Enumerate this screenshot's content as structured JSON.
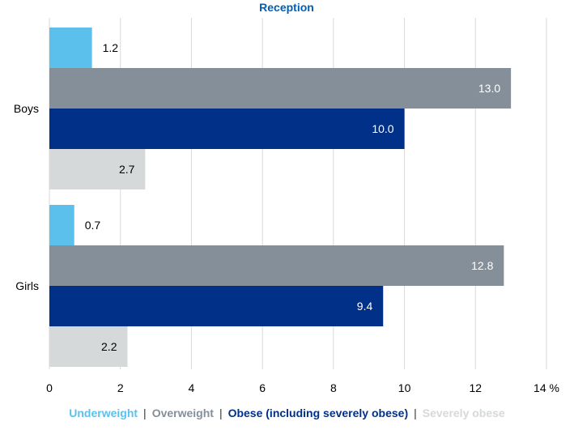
{
  "chart_data": {
    "type": "bar",
    "orientation": "horizontal",
    "title": "Reception",
    "categories": [
      "Boys",
      "Girls"
    ],
    "series": [
      {
        "name": "Underweight",
        "color": "#5bc0eb",
        "values": [
          1.2,
          0.7
        ]
      },
      {
        "name": "Overweight",
        "color": "#848f99",
        "values": [
          13.0,
          12.8
        ]
      },
      {
        "name": "Obese (including severely obese)",
        "color": "#003087",
        "values": [
          10.0,
          9.4
        ]
      },
      {
        "name": "Severely obese",
        "color": "#d5d9d9",
        "values": [
          2.7,
          2.2
        ]
      }
    ],
    "value_labels": [
      [
        "1.2",
        "0.7"
      ],
      [
        "13.0",
        "12.8"
      ],
      [
        "10.0",
        "9.4"
      ],
      [
        "2.7",
        "2.2"
      ]
    ],
    "xlim": [
      0,
      14
    ],
    "xticks": [
      "0",
      "2",
      "4",
      "6",
      "8",
      "10",
      "12",
      "14 %"
    ],
    "grid": true,
    "legend_position": "bottom",
    "legend_separator": "|",
    "colors": {
      "title": "#005eb8",
      "grid": "#d9d9d9",
      "label_dark": "#000000",
      "label_light": "#ffffff"
    }
  }
}
